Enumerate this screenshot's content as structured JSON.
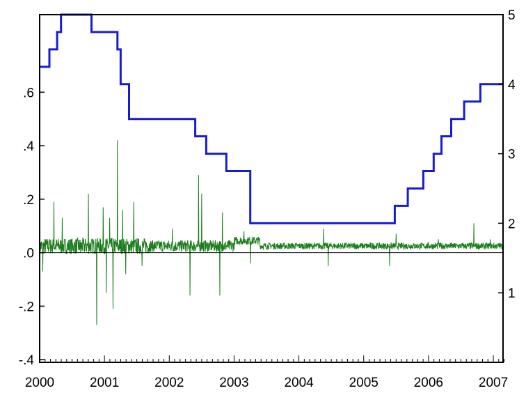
{
  "chart_data": {
    "type": "line",
    "title": "",
    "xlabel": "",
    "ylabel_left": "",
    "ylabel_right": "",
    "x_ticks": [
      "2000",
      "2001",
      "2002",
      "2003",
      "2004",
      "2005",
      "2006",
      "2007"
    ],
    "y_left_ticks": [
      ".6",
      ".4",
      ".2",
      ".0",
      "-.2",
      "-.4"
    ],
    "y_left_tick_values": [
      0.6,
      0.4,
      0.2,
      0.0,
      -0.2,
      -0.4
    ],
    "y_right_ticks": [
      "5",
      "4",
      "3",
      "2",
      "1"
    ],
    "y_right_tick_values": [
      5,
      4,
      3,
      2,
      1
    ],
    "ylim_left": [
      -0.41,
      0.89
    ],
    "ylim_right": [
      0,
      5
    ],
    "xlim": [
      2000.0,
      2007.15
    ],
    "grid": false,
    "zero_line": true,
    "series": [
      {
        "axis": "right",
        "color": "#1a1ad6",
        "style": "step",
        "points": [
          [
            2000.0,
            4.25
          ],
          [
            2000.15,
            4.5
          ],
          [
            2000.27,
            4.75
          ],
          [
            2000.33,
            5.0
          ],
          [
            2000.8,
            4.75
          ],
          [
            2001.2,
            4.5
          ],
          [
            2001.25,
            4.0
          ],
          [
            2001.38,
            3.5
          ],
          [
            2002.4,
            3.25
          ],
          [
            2002.57,
            3.0
          ],
          [
            2002.88,
            2.75
          ],
          [
            2003.25,
            2.0
          ],
          [
            2003.5,
            2.0
          ],
          [
            2005.48,
            2.25
          ],
          [
            2005.68,
            2.5
          ],
          [
            2005.92,
            2.75
          ],
          [
            2006.08,
            3.0
          ],
          [
            2006.2,
            3.25
          ],
          [
            2006.35,
            3.5
          ],
          [
            2006.55,
            3.75
          ],
          [
            2006.8,
            4.0
          ],
          [
            2007.15,
            4.0
          ]
        ]
      },
      {
        "axis": "left",
        "color": "#1b7d1b",
        "style": "line",
        "baseline": 0.025,
        "spikes": [
          [
            2000.05,
            -0.07
          ],
          [
            2000.22,
            0.19
          ],
          [
            2000.35,
            0.13
          ],
          [
            2000.63,
            0.0
          ],
          [
            2000.75,
            0.22
          ],
          [
            2000.88,
            -0.27
          ],
          [
            2000.98,
            0.17
          ],
          [
            2001.03,
            -0.15
          ],
          [
            2001.08,
            0.13
          ],
          [
            2001.13,
            -0.21
          ],
          [
            2001.2,
            0.42
          ],
          [
            2001.28,
            0.16
          ],
          [
            2001.33,
            -0.08
          ],
          [
            2001.45,
            0.19
          ],
          [
            2001.58,
            -0.05
          ],
          [
            2002.05,
            0.09
          ],
          [
            2002.32,
            -0.16
          ],
          [
            2002.45,
            0.29
          ],
          [
            2002.5,
            0.22
          ],
          [
            2002.78,
            -0.16
          ],
          [
            2002.82,
            0.15
          ],
          [
            2003.15,
            0.08
          ],
          [
            2003.25,
            -0.04
          ],
          [
            2004.38,
            0.09
          ],
          [
            2004.45,
            -0.05
          ],
          [
            2005.4,
            -0.05
          ],
          [
            2005.5,
            0.07
          ],
          [
            2006.15,
            0.05
          ],
          [
            2006.7,
            0.11
          ],
          [
            2006.95,
            0.05
          ]
        ]
      }
    ]
  }
}
